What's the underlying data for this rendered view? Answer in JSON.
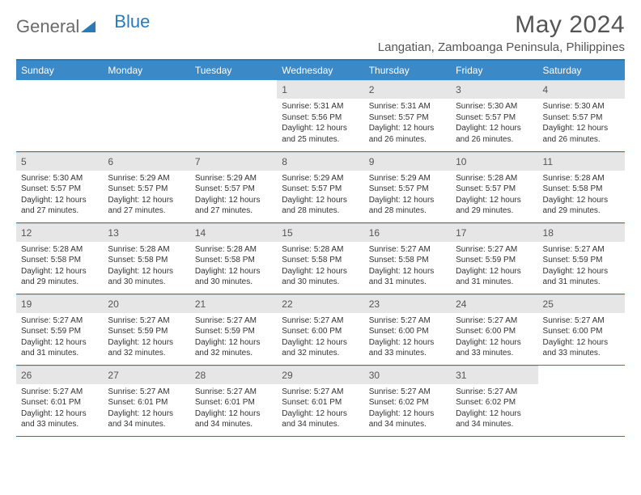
{
  "logo": {
    "word1": "General",
    "word2": "Blue"
  },
  "title": "May 2024",
  "location": "Langatian, Zamboanga Peninsula, Philippines",
  "colors": {
    "header_bg": "#3b89c6",
    "accent": "#2a7ab8",
    "daynum_bg": "#e6e6e6",
    "text": "#333333",
    "muted": "#6b6b6b"
  },
  "weekdays": [
    "Sunday",
    "Monday",
    "Tuesday",
    "Wednesday",
    "Thursday",
    "Friday",
    "Saturday"
  ],
  "weeks": [
    [
      null,
      null,
      null,
      {
        "n": "1",
        "sr": "5:31 AM",
        "ss": "5:56 PM",
        "dl": "12 hours and 25 minutes."
      },
      {
        "n": "2",
        "sr": "5:31 AM",
        "ss": "5:57 PM",
        "dl": "12 hours and 26 minutes."
      },
      {
        "n": "3",
        "sr": "5:30 AM",
        "ss": "5:57 PM",
        "dl": "12 hours and 26 minutes."
      },
      {
        "n": "4",
        "sr": "5:30 AM",
        "ss": "5:57 PM",
        "dl": "12 hours and 26 minutes."
      }
    ],
    [
      {
        "n": "5",
        "sr": "5:30 AM",
        "ss": "5:57 PM",
        "dl": "12 hours and 27 minutes."
      },
      {
        "n": "6",
        "sr": "5:29 AM",
        "ss": "5:57 PM",
        "dl": "12 hours and 27 minutes."
      },
      {
        "n": "7",
        "sr": "5:29 AM",
        "ss": "5:57 PM",
        "dl": "12 hours and 27 minutes."
      },
      {
        "n": "8",
        "sr": "5:29 AM",
        "ss": "5:57 PM",
        "dl": "12 hours and 28 minutes."
      },
      {
        "n": "9",
        "sr": "5:29 AM",
        "ss": "5:57 PM",
        "dl": "12 hours and 28 minutes."
      },
      {
        "n": "10",
        "sr": "5:28 AM",
        "ss": "5:57 PM",
        "dl": "12 hours and 29 minutes."
      },
      {
        "n": "11",
        "sr": "5:28 AM",
        "ss": "5:58 PM",
        "dl": "12 hours and 29 minutes."
      }
    ],
    [
      {
        "n": "12",
        "sr": "5:28 AM",
        "ss": "5:58 PM",
        "dl": "12 hours and 29 minutes."
      },
      {
        "n": "13",
        "sr": "5:28 AM",
        "ss": "5:58 PM",
        "dl": "12 hours and 30 minutes."
      },
      {
        "n": "14",
        "sr": "5:28 AM",
        "ss": "5:58 PM",
        "dl": "12 hours and 30 minutes."
      },
      {
        "n": "15",
        "sr": "5:28 AM",
        "ss": "5:58 PM",
        "dl": "12 hours and 30 minutes."
      },
      {
        "n": "16",
        "sr": "5:27 AM",
        "ss": "5:58 PM",
        "dl": "12 hours and 31 minutes."
      },
      {
        "n": "17",
        "sr": "5:27 AM",
        "ss": "5:59 PM",
        "dl": "12 hours and 31 minutes."
      },
      {
        "n": "18",
        "sr": "5:27 AM",
        "ss": "5:59 PM",
        "dl": "12 hours and 31 minutes."
      }
    ],
    [
      {
        "n": "19",
        "sr": "5:27 AM",
        "ss": "5:59 PM",
        "dl": "12 hours and 31 minutes."
      },
      {
        "n": "20",
        "sr": "5:27 AM",
        "ss": "5:59 PM",
        "dl": "12 hours and 32 minutes."
      },
      {
        "n": "21",
        "sr": "5:27 AM",
        "ss": "5:59 PM",
        "dl": "12 hours and 32 minutes."
      },
      {
        "n": "22",
        "sr": "5:27 AM",
        "ss": "6:00 PM",
        "dl": "12 hours and 32 minutes."
      },
      {
        "n": "23",
        "sr": "5:27 AM",
        "ss": "6:00 PM",
        "dl": "12 hours and 33 minutes."
      },
      {
        "n": "24",
        "sr": "5:27 AM",
        "ss": "6:00 PM",
        "dl": "12 hours and 33 minutes."
      },
      {
        "n": "25",
        "sr": "5:27 AM",
        "ss": "6:00 PM",
        "dl": "12 hours and 33 minutes."
      }
    ],
    [
      {
        "n": "26",
        "sr": "5:27 AM",
        "ss": "6:01 PM",
        "dl": "12 hours and 33 minutes."
      },
      {
        "n": "27",
        "sr": "5:27 AM",
        "ss": "6:01 PM",
        "dl": "12 hours and 34 minutes."
      },
      {
        "n": "28",
        "sr": "5:27 AM",
        "ss": "6:01 PM",
        "dl": "12 hours and 34 minutes."
      },
      {
        "n": "29",
        "sr": "5:27 AM",
        "ss": "6:01 PM",
        "dl": "12 hours and 34 minutes."
      },
      {
        "n": "30",
        "sr": "5:27 AM",
        "ss": "6:02 PM",
        "dl": "12 hours and 34 minutes."
      },
      {
        "n": "31",
        "sr": "5:27 AM",
        "ss": "6:02 PM",
        "dl": "12 hours and 34 minutes."
      },
      null
    ]
  ],
  "labels": {
    "sunrise": "Sunrise:",
    "sunset": "Sunset:",
    "daylight": "Daylight:"
  }
}
